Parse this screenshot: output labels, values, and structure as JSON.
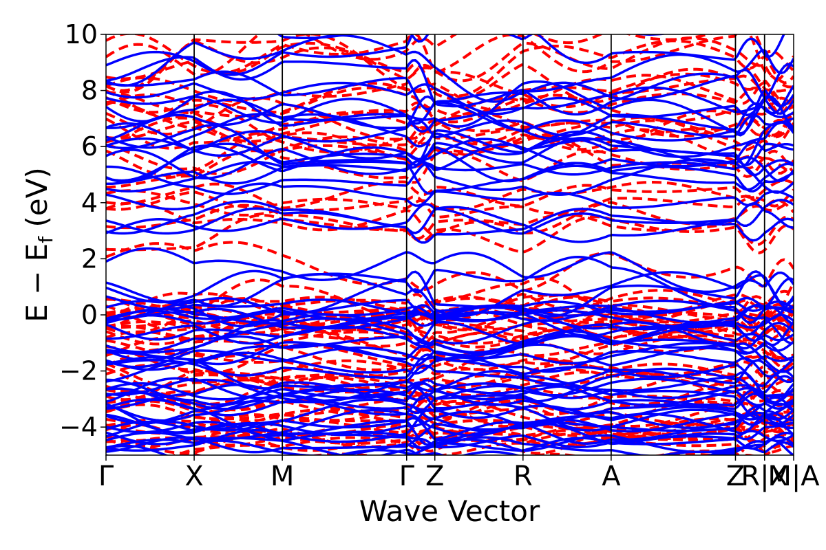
{
  "chart_data": {
    "type": "line",
    "title": "",
    "xlabel": "Wave Vector",
    "ylabel_main": "E − E",
    "ylabel_sub": "f",
    "ylabel_unit": " (eV)",
    "ylim": [
      -5,
      10
    ],
    "yticks": [
      -4,
      -2,
      0,
      2,
      4,
      6,
      8,
      10
    ],
    "ytick_labels": [
      "−4",
      "−2",
      "0",
      "2",
      "4",
      "6",
      "8",
      "10"
    ],
    "kpoints": [
      {
        "label": "Γ",
        "x": 0.0
      },
      {
        "label": "X",
        "x": 1.0
      },
      {
        "label": "M",
        "x": 2.0
      },
      {
        "label": "Γ",
        "x": 3.41
      },
      {
        "label": "Z",
        "x": 3.73
      },
      {
        "label": "R",
        "x": 4.73
      },
      {
        "label": "A",
        "x": 5.73
      },
      {
        "label": "Z",
        "x": 7.14
      },
      {
        "label": "R|X",
        "x": 7.47
      },
      {
        "label": "M|A",
        "x": 7.8
      }
    ],
    "xlim": [
      0.0,
      7.8
    ],
    "series": [
      {
        "name": "blue solid",
        "color": "#0000ff",
        "style": "solid"
      },
      {
        "name": "red dashed",
        "color": "#ff0000",
        "style": "dashed"
      }
    ]
  }
}
